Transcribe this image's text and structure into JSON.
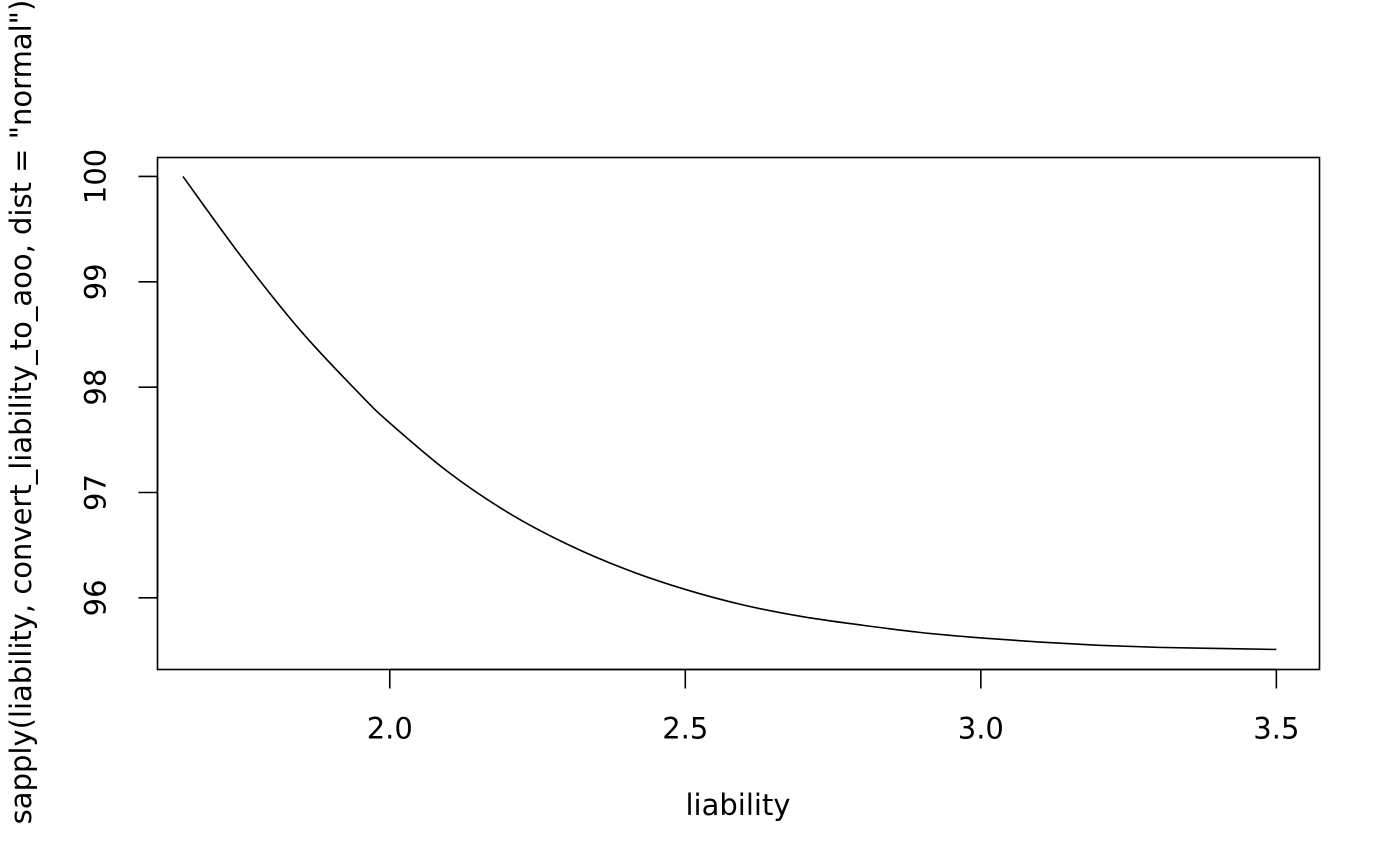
{
  "chart_data": {
    "type": "line",
    "title": "",
    "xlabel": "liability",
    "ylabel": "sapply(liability, convert_liability_to_aoo, dist = \"normal\")",
    "xlim": [
      1.607,
      3.573
    ],
    "ylim": [
      95.32,
      100.18
    ],
    "xticks": [
      2.0,
      2.5,
      3.0,
      3.5
    ],
    "xtick_labels": [
      "2.0",
      "2.5",
      "3.0",
      "3.5"
    ],
    "yticks": [
      96,
      97,
      98,
      99,
      100
    ],
    "ytick_labels": [
      "96",
      "97",
      "98",
      "99",
      "100"
    ],
    "grid": false,
    "legend": "none",
    "series": [
      {
        "color": "#000000",
        "x": [
          1.65,
          1.75,
          1.85,
          1.95,
          2.0,
          2.1,
          2.2,
          2.3,
          2.4,
          2.5,
          2.6,
          2.7,
          2.8,
          2.9,
          3.0,
          3.1,
          3.2,
          3.3,
          3.4,
          3.5
        ],
        "y": [
          100.0,
          99.23,
          98.53,
          97.93,
          97.66,
          97.19,
          96.81,
          96.51,
          96.27,
          96.08,
          95.93,
          95.82,
          95.74,
          95.67,
          95.62,
          95.58,
          95.55,
          95.53,
          95.52,
          95.51
        ]
      }
    ]
  }
}
